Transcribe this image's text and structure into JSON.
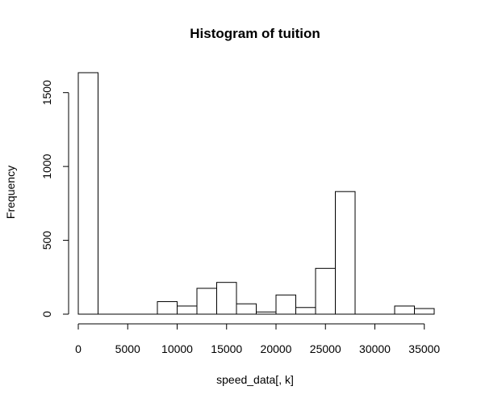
{
  "chart_data": {
    "type": "bar",
    "title": "Histogram of tuition",
    "xlabel": "speed_data[, k]",
    "ylabel": "Frequency",
    "bin_width": 2000,
    "bins": [
      {
        "x0": 0,
        "x1": 2000,
        "count": 1635
      },
      {
        "x0": 2000,
        "x1": 4000,
        "count": 0
      },
      {
        "x0": 4000,
        "x1": 6000,
        "count": 0
      },
      {
        "x0": 6000,
        "x1": 8000,
        "count": 0
      },
      {
        "x0": 8000,
        "x1": 10000,
        "count": 85
      },
      {
        "x0": 10000,
        "x1": 12000,
        "count": 55
      },
      {
        "x0": 12000,
        "x1": 14000,
        "count": 175
      },
      {
        "x0": 14000,
        "x1": 16000,
        "count": 215
      },
      {
        "x0": 16000,
        "x1": 18000,
        "count": 70
      },
      {
        "x0": 18000,
        "x1": 20000,
        "count": 15
      },
      {
        "x0": 20000,
        "x1": 22000,
        "count": 130
      },
      {
        "x0": 22000,
        "x1": 24000,
        "count": 45
      },
      {
        "x0": 24000,
        "x1": 26000,
        "count": 310
      },
      {
        "x0": 26000,
        "x1": 28000,
        "count": 830
      },
      {
        "x0": 28000,
        "x1": 30000,
        "count": 0
      },
      {
        "x0": 30000,
        "x1": 32000,
        "count": 0
      },
      {
        "x0": 32000,
        "x1": 34000,
        "count": 55
      },
      {
        "x0": 34000,
        "x1": 36000,
        "count": 38
      }
    ],
    "xticks": [
      0,
      5000,
      10000,
      15000,
      20000,
      25000,
      30000,
      35000
    ],
    "yticks": [
      0,
      500,
      1000,
      1500
    ],
    "xlim": [
      0,
      36000
    ],
    "ylim": [
      0,
      1635
    ],
    "grid": false,
    "legend": "none",
    "colors": {
      "bar_fill": "#ffffff",
      "bar_stroke": "#000000",
      "axis": "#000000",
      "text": "#000000",
      "background": "#ffffff"
    }
  }
}
